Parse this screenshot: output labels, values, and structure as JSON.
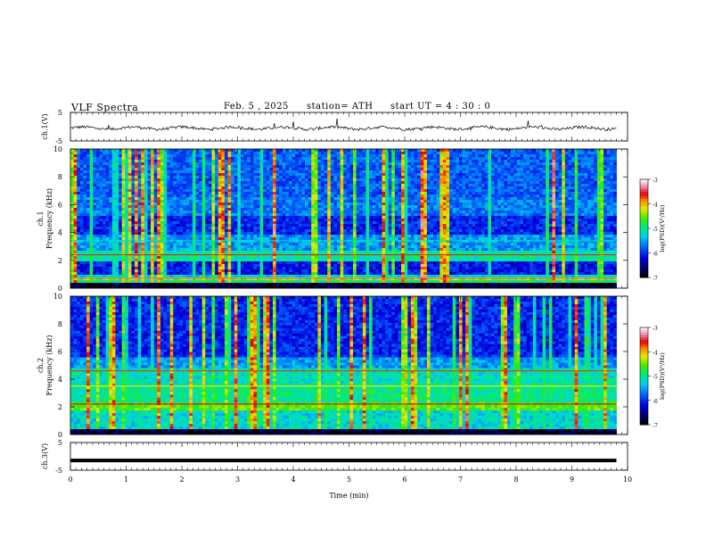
{
  "header": {
    "title": "VLF Spectra",
    "date": "Feb. 5 , 2025",
    "station": "station= ATH",
    "start": "start UT =  4 : 30 : 0"
  },
  "chart_data": [
    {
      "type": "line",
      "ylabel": "ch.1(V)",
      "ylim": [
        -5,
        5
      ],
      "yticks": [
        "5",
        "-5"
      ],
      "xlim": [
        0,
        10
      ],
      "series": [
        {
          "description_level_V": -0.5,
          "noise_amplitude_V": 1.0
        }
      ]
    },
    {
      "type": "heatmap",
      "ylabel_top": "ch.1",
      "ylabel": "Frequency (kHz)",
      "ylim": [
        0,
        10
      ],
      "yticks": [
        "0",
        "2",
        "4",
        "6",
        "8",
        "10"
      ],
      "xlim": [
        0,
        10
      ],
      "data_end_min": 9.8,
      "colorbar": {
        "label": "log(PSD)(V²/Hz)",
        "range": [
          -7,
          -3
        ],
        "ticks": [
          "-3",
          "-4",
          "-5",
          "-6",
          "-7"
        ]
      }
    },
    {
      "type": "heatmap",
      "ylabel_top": "ch.2",
      "ylabel": "Frequency (kHz)",
      "ylim": [
        0,
        10
      ],
      "yticks": [
        "0",
        "2",
        "4",
        "6",
        "8",
        "10"
      ],
      "xlim": [
        0,
        10
      ],
      "data_end_min": 9.8,
      "colorbar": {
        "label": "log(PSD)(V²/Hz)",
        "range": [
          -7,
          -3
        ],
        "ticks": [
          "-3",
          "-4",
          "-5",
          "-6",
          "-7"
        ]
      }
    },
    {
      "type": "line",
      "ylabel": "ch.3(V)",
      "ylim": [
        -5,
        5
      ],
      "yticks": [
        "5",
        "-5"
      ],
      "xlim": [
        0,
        10
      ],
      "xlabel": "Time (min)",
      "xticks": [
        "0",
        "1",
        "2",
        "3",
        "4",
        "5",
        "6",
        "7",
        "8",
        "9",
        "10"
      ],
      "series": [
        {
          "level_V": -1.5
        }
      ]
    }
  ]
}
